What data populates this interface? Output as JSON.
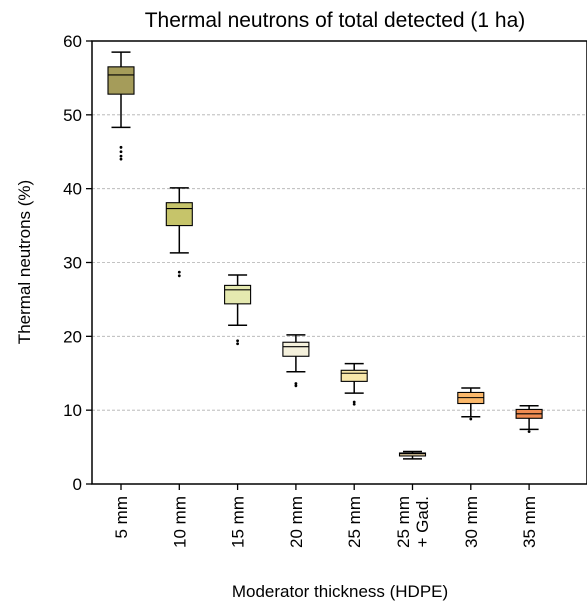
{
  "chart_data": {
    "type": "box",
    "title": "Thermal neutrons of total detected (1 ha)",
    "xlabel": "Moderator thickness (HDPE)",
    "ylabel": "Thermal neutrons (%)",
    "ylim": [
      0,
      60
    ],
    "yticks": [
      0,
      10,
      20,
      30,
      40,
      50,
      60
    ],
    "grid": "horizontal dashed",
    "categories": [
      "5 mm",
      "10 mm",
      "15 mm",
      "20 mm",
      "25 mm",
      "25 mm\n+ Gad.",
      "30 mm",
      "35 mm"
    ],
    "boxes": [
      {
        "category": "5 mm",
        "whisker_low": 48.3,
        "q1": 52.8,
        "median": 55.4,
        "q3": 56.5,
        "whisker_high": 58.5,
        "outliers": [
          45.6,
          45.0,
          44.4,
          44.0
        ],
        "color": "#a59c5a"
      },
      {
        "category": "10 mm",
        "whisker_low": 31.3,
        "q1": 35.0,
        "median": 37.3,
        "q3": 38.1,
        "whisker_high": 40.1,
        "outliers": [
          28.7,
          28.2
        ],
        "color": "#c6c46a"
      },
      {
        "category": "15 mm",
        "whisker_low": 21.5,
        "q1": 24.4,
        "median": 26.3,
        "q3": 26.9,
        "whisker_high": 28.3,
        "outliers": [
          19.4,
          19.0
        ],
        "color": "#e5e9b0"
      },
      {
        "category": "20 mm",
        "whisker_low": 15.2,
        "q1": 17.3,
        "median": 18.6,
        "q3": 19.2,
        "whisker_high": 20.2,
        "outliers": [
          13.6,
          13.3
        ],
        "color": "#f5f1dc"
      },
      {
        "category": "25 mm",
        "whisker_low": 12.3,
        "q1": 13.9,
        "median": 15.0,
        "q3": 15.4,
        "whisker_high": 16.3,
        "outliers": [
          11.1,
          10.8
        ],
        "color": "#f8e7aa"
      },
      {
        "category": "25 mm\n+ Gad.",
        "whisker_low": 3.4,
        "q1": 3.8,
        "median": 4.1,
        "q3": 4.2,
        "whisker_high": 4.4,
        "outliers": [],
        "color": "#ffe7b4"
      },
      {
        "category": "30 mm",
        "whisker_low": 9.1,
        "q1": 10.9,
        "median": 11.7,
        "q3": 12.4,
        "whisker_high": 13.0,
        "outliers": [
          8.8
        ],
        "color": "#fbb86a"
      },
      {
        "category": "35 mm",
        "whisker_low": 7.4,
        "q1": 8.9,
        "median": 9.5,
        "q3": 10.1,
        "whisker_high": 10.6,
        "outliers": [
          7.1
        ],
        "color": "#f08c52"
      }
    ]
  }
}
